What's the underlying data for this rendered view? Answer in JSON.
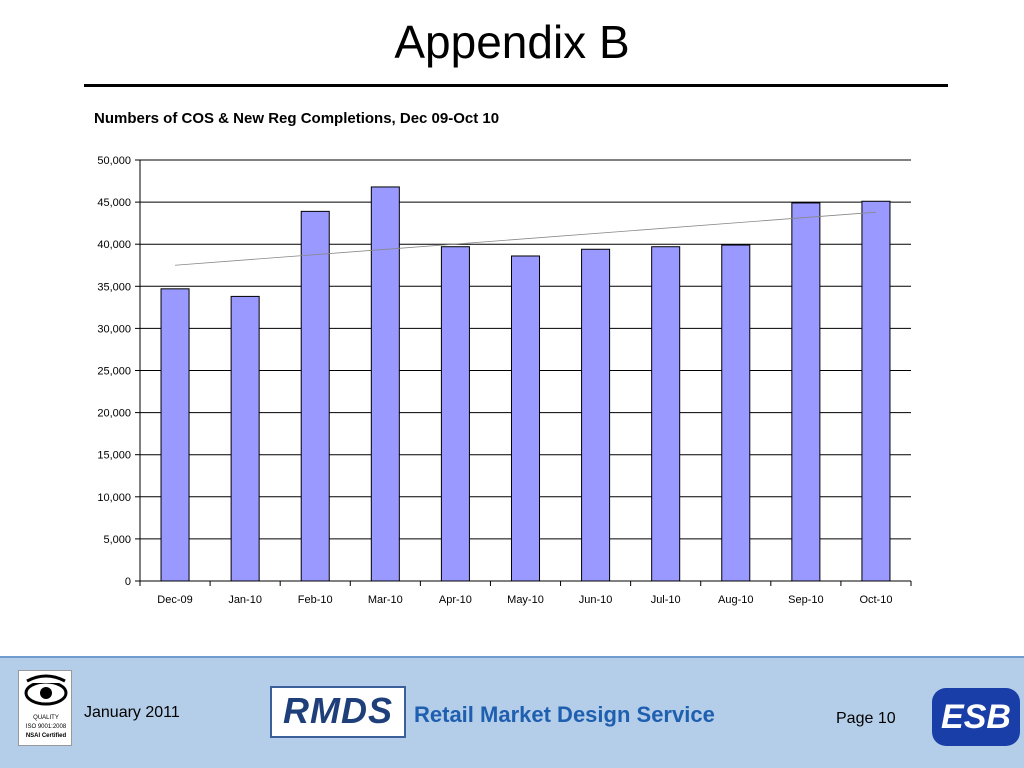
{
  "slide": {
    "title": "Appendix B"
  },
  "chart_data": {
    "type": "bar",
    "title": "Numbers of COS &  New Reg Completions, Dec 09-Oct 10",
    "categories": [
      "Dec-09",
      "Jan-10",
      "Feb-10",
      "Mar-10",
      "Apr-10",
      "May-10",
      "Jun-10",
      "Jul-10",
      "Aug-10",
      "Sep-10",
      "Oct-10"
    ],
    "values": [
      34700,
      33800,
      43900,
      46800,
      39700,
      38600,
      39400,
      39700,
      39900,
      44900,
      45100
    ],
    "ylim": [
      0,
      50000
    ],
    "yticks": [
      0,
      5000,
      10000,
      15000,
      20000,
      25000,
      30000,
      35000,
      40000,
      45000,
      50000
    ],
    "ytick_labels": [
      "0",
      "5,000",
      "10,000",
      "15,000",
      "20,000",
      "25,000",
      "30,000",
      "35,000",
      "40,000",
      "45,000",
      "50,000"
    ],
    "trendline": {
      "type": "linear",
      "start_value": 37500,
      "end_value": 43800
    },
    "grid": true,
    "bar_color": "#9999ff",
    "bar_edge_color": "#000000"
  },
  "footer": {
    "date": "January 2011",
    "logo_text": "RMDS",
    "service_name": "Retail Market Design Service",
    "page": "Page 10",
    "quality_label": "QUALITY",
    "quality_standard": "ISO 9001:2008",
    "quality_cert": "NSAI Certified",
    "esb_logo_text": "ESB"
  },
  "colors": {
    "footer_bg": "#b4cde8",
    "service_text": "#1f5fb0",
    "esb_blue": "#1a3ea8"
  }
}
